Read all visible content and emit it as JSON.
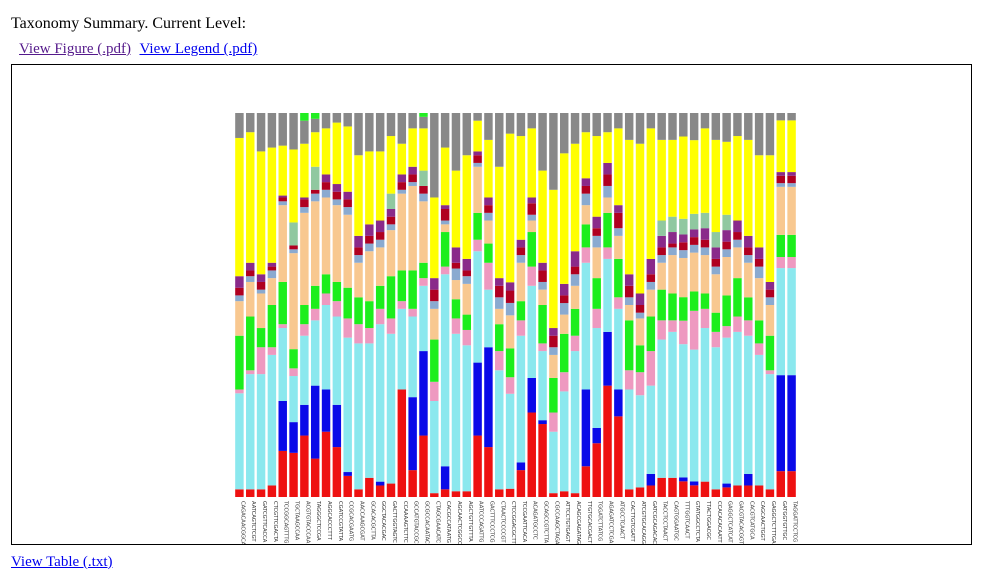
{
  "header": {
    "title": "Taxonomy Summary. Current Level:",
    "figure_link": "View Figure (.pdf)",
    "legend_link": "View Legend (.pdf)"
  },
  "footer": {
    "table_link": "View Table (.txt)"
  },
  "colors": {
    "red": "#ee1111",
    "blue": "#0a0ae8",
    "cyan": "#8be8ee",
    "pink": "#ee99c0",
    "green": "#1cee1c",
    "peach": "#f8c890",
    "steelblue": "#8aaad0",
    "darkred": "#b00020",
    "purple": "#8a2a8a",
    "sage": "#90c8a0",
    "yellow": "#ffff00",
    "gray": "#888888",
    "lime": "#22ee22"
  },
  "chart_data": {
    "type": "bar",
    "stacked": true,
    "ylim": [
      0,
      100
    ],
    "categories": [
      "CAGACAACGGCA",
      "AATCAGTCTCGT",
      "GATCGTTCACCA",
      "CTCGTTCGACTA",
      "TCCGGCAGTTTG",
      "TGCTAAGCCAA",
      "ACGTGTACCCAA",
      "TAGGGCTCCGA",
      "AGGCACCCTTT",
      "CGATCCGTATTA",
      "CCGCACGAATG",
      "AACCAAGCGAT",
      "GCACACGCTTA",
      "GGCTACACGAC",
      "GACTTGGTAGTC",
      "CCAAAAGTCTTC",
      "GCCATGTACCGC",
      "GCGCCACAATAC",
      "CTAGCGAACATC",
      "CACGCCATAATG",
      "AGCAACTCGGCC",
      "AGCTGTTGTTTA",
      "AATCCCAGATTG",
      "GACTTTCCCTCG",
      "CTAACTCCCCGT",
      "CTCCGGACGCTT",
      "TCCGAATTCACA",
      "ACAGATGCCTC",
      "GCAGCCGTCTTA",
      "CGCCAAGCTAGA",
      "ATTCCTGTGAGT",
      "ACAGCGAGATAG",
      "TTGTGCACGACT",
      "TGGATCTTATCG",
      "AGAGATCCTCGA",
      "ATGCCTCAACT",
      "CACTTGTCGATT",
      "ATCGTGCACAGG",
      "GATCGCAGACAC",
      "TACCTCCTAACT",
      "CAGTGGAATGC",
      "TTTGGTCAACT",
      "GTATGGCCTCTA",
      "TTACTGGACGC",
      "CCACACACAATT",
      "GAGGCTCATCAT",
      "GACGTACACGGT",
      "CACGTCATGCA",
      "CAGCAACTGGT",
      "GAGGCTCTTTGA",
      "GATGGTGTTGC",
      "TAGGATTCCTCG"
    ],
    "segment_order": [
      "red",
      "blue",
      "cyan",
      "pink",
      "green",
      "peach",
      "steelblue",
      "darkred",
      "purple",
      "sage",
      "yellow",
      "gray",
      "lime"
    ],
    "bars": [
      {
        "red": 2.0,
        "blue": 0.0,
        "cyan": 25.0,
        "pink": 1.0,
        "green": 14.0,
        "peach": 9.0,
        "steelblue": 1.5,
        "darkred": 2.0,
        "purple": 3.0,
        "yellow": 36.0,
        "gray": 6.5
      },
      {
        "red": 2.0,
        "blue": 0.0,
        "cyan": 30.0,
        "pink": 1.0,
        "green": 14.0,
        "peach": 9.0,
        "steelblue": 1.5,
        "darkred": 1.5,
        "purple": 2.0,
        "yellow": 34.0,
        "gray": 5.0
      },
      {
        "red": 2.0,
        "blue": 0.0,
        "cyan": 30.0,
        "pink": 7.0,
        "green": 5.0,
        "peach": 9.0,
        "steelblue": 1.0,
        "darkred": 2.0,
        "purple": 2.0,
        "yellow": 32.0,
        "gray": 10.0
      },
      {
        "red": 3.0,
        "blue": 0.0,
        "cyan": 34.0,
        "pink": 2.0,
        "green": 11.0,
        "peach": 7.0,
        "steelblue": 2.0,
        "darkred": 1.0,
        "purple": 1.0,
        "yellow": 30.0,
        "gray": 9.0
      },
      {
        "red": 12.0,
        "blue": 13.0,
        "cyan": 19.0,
        "pink": 1.0,
        "green": 11.0,
        "peach": 20.0,
        "steelblue": 1.0,
        "darkred": 1.0,
        "purple": 0.5,
        "yellow": 13.0,
        "gray": 8.5
      },
      {
        "red": 11.5,
        "blue": 8.0,
        "cyan": 12.0,
        "pink": 2.0,
        "green": 5.0,
        "peach": 25.0,
        "steelblue": 1.0,
        "darkred": 1.0,
        "sage": 6.0,
        "yellow": 19.0,
        "gray": 9.5
      },
      {
        "red": 16.0,
        "blue": 8.0,
        "cyan": 18.0,
        "pink": 3.0,
        "green": 5.0,
        "peach": 24.0,
        "steelblue": 1.5,
        "darkred": 2.0,
        "purple": 0.5,
        "yellow": 14.0,
        "gray": 6.0,
        "lime": 2.0
      },
      {
        "red": 10.0,
        "blue": 19.0,
        "cyan": 17.0,
        "pink": 3.0,
        "green": 6.0,
        "peach": 22.0,
        "steelblue": 2.0,
        "darkred": 1.0,
        "sage": 6.0,
        "yellow": 9.0,
        "gray": 3.5,
        "lime": 1.5
      },
      {
        "red": 17.0,
        "blue": 11.0,
        "cyan": 22.0,
        "pink": 3.0,
        "green": 5.0,
        "peach": 20.0,
        "steelblue": 2.0,
        "darkred": 2.0,
        "purple": 2.0,
        "yellow": 12.0,
        "gray": 4.0
      },
      {
        "red": 13.0,
        "blue": 11.0,
        "cyan": 23.0,
        "pink": 4.0,
        "green": 5.0,
        "peach": 20.0,
        "steelblue": 1.5,
        "darkred": 2.0,
        "purple": 2.0,
        "yellow": 16.0,
        "gray": 2.5
      },
      {
        "red": 5.5,
        "blue": 1.0,
        "cyan": 35.0,
        "pink": 5.0,
        "green": 8.0,
        "peach": 19.0,
        "steelblue": 2.0,
        "darkred": 2.0,
        "purple": 2.0,
        "yellow": 17.0,
        "gray": 3.5
      },
      {
        "red": 2.0,
        "blue": 0.0,
        "cyan": 38.0,
        "pink": 5.0,
        "green": 7.0,
        "peach": 9.0,
        "steelblue": 2.0,
        "darkred": 2.0,
        "purple": 3.0,
        "yellow": 21.0,
        "gray": 11.0
      },
      {
        "red": 5.0,
        "blue": 0.0,
        "cyan": 35.0,
        "pink": 4.0,
        "green": 7.0,
        "peach": 13.0,
        "steelblue": 2.0,
        "darkred": 2.0,
        "purple": 3.0,
        "yellow": 19.0,
        "gray": 10.0
      },
      {
        "red": 3.0,
        "blue": 1.0,
        "cyan": 41.0,
        "pink": 4.0,
        "green": 6.0,
        "peach": 10.0,
        "steelblue": 2.0,
        "darkred": 2.0,
        "purple": 3.0,
        "yellow": 18.0,
        "gray": 10.0
      },
      {
        "red": 3.5,
        "blue": 0.0,
        "cyan": 39.0,
        "pink": 4.0,
        "green": 11.0,
        "peach": 12.0,
        "steelblue": 1.5,
        "darkred": 2.0,
        "purple": 2.0,
        "sage": 4.0,
        "yellow": 15.0,
        "gray": 6.0
      },
      {
        "red": 28.0,
        "blue": 0.0,
        "cyan": 21.0,
        "pink": 2.0,
        "green": 8.0,
        "peach": 20.0,
        "steelblue": 1.0,
        "darkred": 2.0,
        "purple": 2.0,
        "yellow": 8.0,
        "gray": 8.0
      },
      {
        "red": 7.0,
        "blue": 19.0,
        "cyan": 21.0,
        "pink": 2.0,
        "green": 10.0,
        "peach": 22.0,
        "steelblue": 1.0,
        "darkred": 2.0,
        "purple": 2.0,
        "yellow": 10.0,
        "gray": 4.0
      },
      {
        "red": 16.0,
        "blue": 22.0,
        "cyan": 17.0,
        "pink": 2.0,
        "green": 4.0,
        "peach": 16.0,
        "steelblue": 2.0,
        "darkred": 2.0,
        "sage": 4.0,
        "yellow": 11.0,
        "gray": 3.0,
        "lime": 1.0
      },
      {
        "red": 1.0,
        "blue": 0.0,
        "cyan": 24.0,
        "pink": 5.0,
        "green": 11.0,
        "peach": 8.0,
        "steelblue": 2.0,
        "darkred": 3.0,
        "purple": 3.0,
        "yellow": 21.0,
        "gray": 22.0
      },
      {
        "red": 2.0,
        "blue": 6.0,
        "cyan": 50.0,
        "pink": 2.0,
        "green": 9.0,
        "peach": 2.0,
        "steelblue": 1.0,
        "darkred": 3.0,
        "purple": 1.0,
        "yellow": 15.0,
        "gray": 9.0
      },
      {
        "red": 1.5,
        "blue": 0.0,
        "cyan": 41.0,
        "pink": 4.0,
        "green": 5.0,
        "peach": 5.0,
        "steelblue": 3.0,
        "darkred": 1.5,
        "purple": 4.0,
        "yellow": 20.0,
        "gray": 15.0
      },
      {
        "red": 1.5,
        "blue": 0.0,
        "cyan": 38.0,
        "pink": 4.0,
        "green": 4.0,
        "peach": 8.0,
        "steelblue": 2.0,
        "darkred": 1.5,
        "purple": 3.0,
        "yellow": 27.0,
        "gray": 11.0
      },
      {
        "red": 16.0,
        "blue": 19.0,
        "cyan": 29.0,
        "pink": 3.0,
        "green": 7.0,
        "peach": 12.0,
        "steelblue": 1.0,
        "darkred": 2.0,
        "purple": 1.0,
        "yellow": 8.0,
        "gray": 2.0
      },
      {
        "red": 13.0,
        "blue": 26.0,
        "cyan": 15.0,
        "pink": 7.0,
        "green": 5.0,
        "peach": 6.0,
        "steelblue": 2.0,
        "darkred": 2.0,
        "purple": 2.0,
        "yellow": 15.0,
        "gray": 7.0
      },
      {
        "red": 2.0,
        "blue": 0.0,
        "cyan": 31.0,
        "pink": 5.0,
        "green": 7.0,
        "peach": 4.0,
        "steelblue": 3.0,
        "darkred": 3.0,
        "purple": 2.0,
        "yellow": 29.0,
        "gray": 14.0
      },
      {
        "red": 2.0,
        "blue": 0.0,
        "cyan": 23.0,
        "pink": 4.0,
        "green": 7.0,
        "peach": 8.0,
        "steelblue": 3.0,
        "darkred": 3.0,
        "purple": 2.0,
        "yellow": 36.0,
        "gray": 5.0
      },
      {
        "red": 7.0,
        "blue": 2.0,
        "cyan": 33.0,
        "pink": 4.0,
        "green": 5.0,
        "peach": 10.0,
        "steelblue": 2.0,
        "darkred": 2.0,
        "purple": 2.0,
        "yellow": 27.0,
        "gray": 6.0
      },
      {
        "red": 22.0,
        "blue": 9.0,
        "cyan": 24.0,
        "pink": 5.0,
        "green": 9.0,
        "peach": 3.0,
        "steelblue": 1.5,
        "darkred": 3.0,
        "purple": 1.5,
        "yellow": 18.0,
        "gray": 4.0
      },
      {
        "red": 19.0,
        "blue": 1.0,
        "cyan": 18.0,
        "pink": 2.0,
        "green": 10.0,
        "peach": 4.0,
        "steelblue": 2.0,
        "darkred": 3.0,
        "purple": 2.0,
        "yellow": 24.0,
        "gray": 15.0
      },
      {
        "red": 1.0,
        "blue": 0.0,
        "cyan": 16.0,
        "pink": 5.0,
        "green": 9.0,
        "peach": 6.0,
        "steelblue": 2.0,
        "darkred": 3.0,
        "purple": 2.0,
        "yellow": 36.0,
        "gray": 20.0
      },
      {
        "red": 1.5,
        "blue": 0.0,
        "cyan": 26.0,
        "pink": 5.0,
        "green": 10.0,
        "peach": 5.0,
        "steelblue": 3.0,
        "darkred": 2.0,
        "purple": 3.0,
        "yellow": 34.0,
        "gray": 10.5
      },
      {
        "red": 1.0,
        "blue": 0.0,
        "cyan": 37.0,
        "pink": 4.0,
        "green": 7.0,
        "peach": 6.0,
        "steelblue": 3.0,
        "darkred": 2.0,
        "purple": 4.0,
        "yellow": 28.0,
        "gray": 8.0
      },
      {
        "red": 8.0,
        "blue": 20.0,
        "cyan": 33.0,
        "pink": 4.0,
        "green": 6.0,
        "peach": 5.0,
        "steelblue": 3.0,
        "darkred": 2.0,
        "purple": 2.0,
        "yellow": 12.0,
        "gray": 5.0
      },
      {
        "red": 14.0,
        "blue": 4.0,
        "cyan": 26.0,
        "pink": 5.0,
        "green": 8.0,
        "peach": 8.0,
        "steelblue": 3.0,
        "darkred": 2.0,
        "purple": 3.0,
        "yellow": 21.0,
        "gray": 6.0
      },
      {
        "red": 29.0,
        "blue": 14.0,
        "cyan": 19.0,
        "pink": 3.0,
        "green": 9.0,
        "peach": 4.0,
        "steelblue": 3.0,
        "darkred": 3.0,
        "purple": 3.0,
        "yellow": 8.0,
        "gray": 5.0
      },
      {
        "red": 21.0,
        "blue": 7.0,
        "cyan": 21.0,
        "pink": 3.0,
        "green": 10.0,
        "peach": 6.0,
        "steelblue": 2.0,
        "darkred": 4.0,
        "purple": 2.0,
        "yellow": 20.0,
        "gray": 4.0
      },
      {
        "red": 2.0,
        "blue": 0.0,
        "cyan": 26.0,
        "pink": 5.0,
        "green": 13.0,
        "peach": 4.0,
        "steelblue": 2.0,
        "darkred": 3.0,
        "purple": 3.0,
        "yellow": 35.0,
        "gray": 7.0
      },
      {
        "red": 2.5,
        "blue": 0.0,
        "cyan": 24.0,
        "pink": 6.0,
        "green": 7.0,
        "peach": 7.0,
        "steelblue": 1.5,
        "darkred": 2.0,
        "purple": 3.0,
        "yellow": 39.0,
        "gray": 8.0
      },
      {
        "red": 3.0,
        "blue": 3.0,
        "cyan": 23.0,
        "pink": 9.0,
        "green": 9.0,
        "peach": 7.0,
        "steelblue": 2.0,
        "darkred": 2.0,
        "purple": 4.0,
        "yellow": 34.0,
        "gray": 4.0
      },
      {
        "red": 5.0,
        "blue": 0.0,
        "cyan": 36.0,
        "pink": 5.0,
        "green": 8.0,
        "peach": 7.0,
        "steelblue": 2.0,
        "darkred": 2.0,
        "purple": 3.0,
        "sage": 4.0,
        "yellow": 21.0,
        "gray": 7.0
      },
      {
        "red": 5.0,
        "blue": 0.0,
        "cyan": 38.0,
        "pink": 3.0,
        "green": 7.0,
        "peach": 10.0,
        "steelblue": 2.0,
        "darkred": 1.0,
        "purple": 3.0,
        "sage": 4.0,
        "yellow": 20.0,
        "gray": 7.0
      },
      {
        "red": 4.0,
        "blue": 1.0,
        "cyan": 34.0,
        "pink": 6.0,
        "green": 6.0,
        "peach": 10.0,
        "steelblue": 2.0,
        "darkred": 2.0,
        "purple": 2.0,
        "sage": 4.0,
        "yellow": 21.0,
        "gray": 6.0
      },
      {
        "red": 3.0,
        "blue": 1.0,
        "cyan": 34.0,
        "pink": 10.0,
        "green": 5.0,
        "peach": 10.0,
        "steelblue": 2.0,
        "darkred": 2.0,
        "purple": 2.0,
        "sage": 4.0,
        "yellow": 19.0,
        "gray": 7.0
      },
      {
        "red": 4.0,
        "blue": 0.0,
        "cyan": 40.0,
        "pink": 5.0,
        "green": 4.0,
        "peach": 10.0,
        "steelblue": 2.0,
        "darkred": 2.0,
        "purple": 3.0,
        "sage": 4.0,
        "yellow": 22.0,
        "gray": 4.0
      },
      {
        "red": 2.0,
        "blue": 0.0,
        "cyan": 37.0,
        "pink": 4.0,
        "green": 5.0,
        "peach": 10.0,
        "steelblue": 2.0,
        "darkred": 2.0,
        "purple": 3.0,
        "sage": 4.0,
        "yellow": 24.0,
        "gray": 7.0
      },
      {
        "red": 2.5,
        "blue": 1.0,
        "cyan": 38.0,
        "pink": 3.0,
        "green": 8.0,
        "peach": 10.0,
        "steelblue": 2.0,
        "darkred": 2.0,
        "purple": 3.0,
        "sage": 4.0,
        "yellow": 19.0,
        "gray": 7.5
      },
      {
        "red": 3.0,
        "blue": 0.0,
        "cyan": 40.0,
        "pink": 4.0,
        "green": 10.0,
        "peach": 8.0,
        "steelblue": 2.0,
        "darkred": 2.0,
        "purple": 3.0,
        "yellow": 22.0,
        "gray": 6.0
      },
      {
        "red": 3.0,
        "blue": 3.0,
        "cyan": 36.0,
        "pink": 4.0,
        "green": 6.0,
        "peach": 9.0,
        "steelblue": 2.0,
        "darkred": 2.0,
        "purple": 3.0,
        "yellow": 25.0,
        "gray": 7.0
      },
      {
        "red": 3.0,
        "blue": 0.0,
        "cyan": 34.0,
        "pink": 3.0,
        "green": 6.0,
        "peach": 11.0,
        "steelblue": 3.0,
        "darkred": 2.0,
        "purple": 3.0,
        "yellow": 24.0,
        "gray": 11.0
      },
      {
        "red": 2.0,
        "blue": 0.0,
        "cyan": 30.0,
        "pink": 1.0,
        "green": 9.0,
        "peach": 8.0,
        "steelblue": 2.0,
        "darkred": 2.0,
        "purple": 2.0,
        "yellow": 33.0,
        "gray": 11.0
      },
      {
        "red": 7.0,
        "blue": 26.0,
        "cyan": 29.0,
        "pink": 3.0,
        "green": 6.0,
        "peach": 13.0,
        "steelblue": 1.0,
        "darkred": 2.0,
        "purple": 1.0,
        "yellow": 14.0,
        "gray": 2.0
      },
      {
        "red": 7.0,
        "blue": 26.0,
        "cyan": 29.0,
        "pink": 3.0,
        "green": 6.0,
        "peach": 13.0,
        "steelblue": 1.0,
        "darkred": 2.0,
        "purple": 1.0,
        "yellow": 14.0,
        "gray": 2.0
      }
    ]
  }
}
